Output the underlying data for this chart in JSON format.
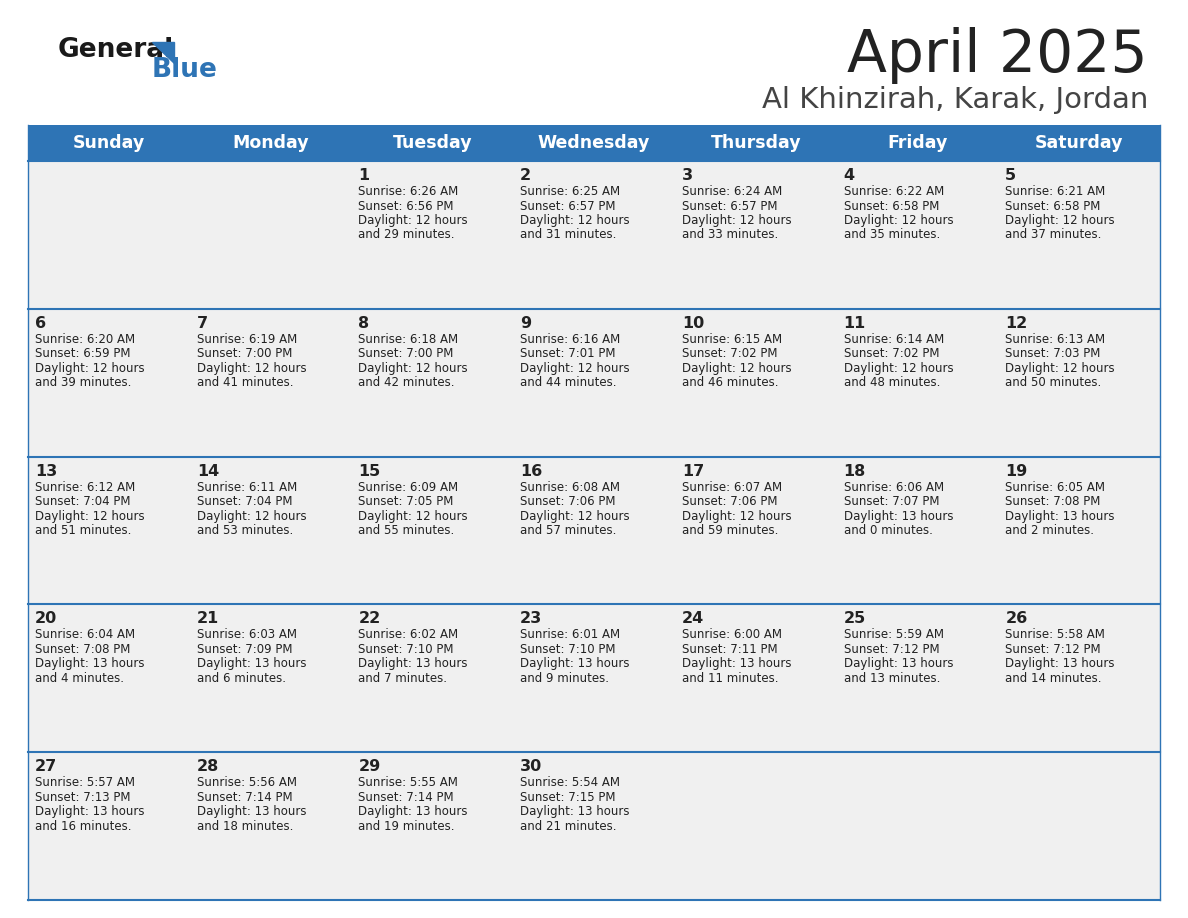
{
  "title": "April 2025",
  "subtitle": "Al Khinzirah, Karak, Jordan",
  "days_of_week": [
    "Sunday",
    "Monday",
    "Tuesday",
    "Wednesday",
    "Thursday",
    "Friday",
    "Saturday"
  ],
  "header_bg": "#2e74b5",
  "header_text": "#ffffff",
  "cell_bg_light": "#f0f0f0",
  "cell_border": "#2e74b5",
  "title_color": "#222222",
  "text_color": "#222222",
  "calendar": [
    [
      {
        "day": "",
        "sunrise": "",
        "sunset": "",
        "daylight": ""
      },
      {
        "day": "",
        "sunrise": "",
        "sunset": "",
        "daylight": ""
      },
      {
        "day": "1",
        "sunrise": "6:26 AM",
        "sunset": "6:56 PM",
        "daylight_hours": "12",
        "daylight_mins": "29"
      },
      {
        "day": "2",
        "sunrise": "6:25 AM",
        "sunset": "6:57 PM",
        "daylight_hours": "12",
        "daylight_mins": "31"
      },
      {
        "day": "3",
        "sunrise": "6:24 AM",
        "sunset": "6:57 PM",
        "daylight_hours": "12",
        "daylight_mins": "33"
      },
      {
        "day": "4",
        "sunrise": "6:22 AM",
        "sunset": "6:58 PM",
        "daylight_hours": "12",
        "daylight_mins": "35"
      },
      {
        "day": "5",
        "sunrise": "6:21 AM",
        "sunset": "6:58 PM",
        "daylight_hours": "12",
        "daylight_mins": "37"
      }
    ],
    [
      {
        "day": "6",
        "sunrise": "6:20 AM",
        "sunset": "6:59 PM",
        "daylight_hours": "12",
        "daylight_mins": "39"
      },
      {
        "day": "7",
        "sunrise": "6:19 AM",
        "sunset": "7:00 PM",
        "daylight_hours": "12",
        "daylight_mins": "41"
      },
      {
        "day": "8",
        "sunrise": "6:18 AM",
        "sunset": "7:00 PM",
        "daylight_hours": "12",
        "daylight_mins": "42"
      },
      {
        "day": "9",
        "sunrise": "6:16 AM",
        "sunset": "7:01 PM",
        "daylight_hours": "12",
        "daylight_mins": "44"
      },
      {
        "day": "10",
        "sunrise": "6:15 AM",
        "sunset": "7:02 PM",
        "daylight_hours": "12",
        "daylight_mins": "46"
      },
      {
        "day": "11",
        "sunrise": "6:14 AM",
        "sunset": "7:02 PM",
        "daylight_hours": "12",
        "daylight_mins": "48"
      },
      {
        "day": "12",
        "sunrise": "6:13 AM",
        "sunset": "7:03 PM",
        "daylight_hours": "12",
        "daylight_mins": "50"
      }
    ],
    [
      {
        "day": "13",
        "sunrise": "6:12 AM",
        "sunset": "7:04 PM",
        "daylight_hours": "12",
        "daylight_mins": "51"
      },
      {
        "day": "14",
        "sunrise": "6:11 AM",
        "sunset": "7:04 PM",
        "daylight_hours": "12",
        "daylight_mins": "53"
      },
      {
        "day": "15",
        "sunrise": "6:09 AM",
        "sunset": "7:05 PM",
        "daylight_hours": "12",
        "daylight_mins": "55"
      },
      {
        "day": "16",
        "sunrise": "6:08 AM",
        "sunset": "7:06 PM",
        "daylight_hours": "12",
        "daylight_mins": "57"
      },
      {
        "day": "17",
        "sunrise": "6:07 AM",
        "sunset": "7:06 PM",
        "daylight_hours": "12",
        "daylight_mins": "59"
      },
      {
        "day": "18",
        "sunrise": "6:06 AM",
        "sunset": "7:07 PM",
        "daylight_hours": "13",
        "daylight_mins": "0"
      },
      {
        "day": "19",
        "sunrise": "6:05 AM",
        "sunset": "7:08 PM",
        "daylight_hours": "13",
        "daylight_mins": "2"
      }
    ],
    [
      {
        "day": "20",
        "sunrise": "6:04 AM",
        "sunset": "7:08 PM",
        "daylight_hours": "13",
        "daylight_mins": "4"
      },
      {
        "day": "21",
        "sunrise": "6:03 AM",
        "sunset": "7:09 PM",
        "daylight_hours": "13",
        "daylight_mins": "6"
      },
      {
        "day": "22",
        "sunrise": "6:02 AM",
        "sunset": "7:10 PM",
        "daylight_hours": "13",
        "daylight_mins": "7"
      },
      {
        "day": "23",
        "sunrise": "6:01 AM",
        "sunset": "7:10 PM",
        "daylight_hours": "13",
        "daylight_mins": "9"
      },
      {
        "day": "24",
        "sunrise": "6:00 AM",
        "sunset": "7:11 PM",
        "daylight_hours": "13",
        "daylight_mins": "11"
      },
      {
        "day": "25",
        "sunrise": "5:59 AM",
        "sunset": "7:12 PM",
        "daylight_hours": "13",
        "daylight_mins": "13"
      },
      {
        "day": "26",
        "sunrise": "5:58 AM",
        "sunset": "7:12 PM",
        "daylight_hours": "13",
        "daylight_mins": "14"
      }
    ],
    [
      {
        "day": "27",
        "sunrise": "5:57 AM",
        "sunset": "7:13 PM",
        "daylight_hours": "13",
        "daylight_mins": "16"
      },
      {
        "day": "28",
        "sunrise": "5:56 AM",
        "sunset": "7:14 PM",
        "daylight_hours": "13",
        "daylight_mins": "18"
      },
      {
        "day": "29",
        "sunrise": "5:55 AM",
        "sunset": "7:14 PM",
        "daylight_hours": "13",
        "daylight_mins": "19"
      },
      {
        "day": "30",
        "sunrise": "5:54 AM",
        "sunset": "7:15 PM",
        "daylight_hours": "13",
        "daylight_mins": "21"
      },
      {
        "day": "",
        "sunrise": "",
        "sunset": "",
        "daylight_hours": "",
        "daylight_mins": ""
      },
      {
        "day": "",
        "sunrise": "",
        "sunset": "",
        "daylight_hours": "",
        "daylight_mins": ""
      },
      {
        "day": "",
        "sunrise": "",
        "sunset": "",
        "daylight_hours": "",
        "daylight_mins": ""
      }
    ]
  ]
}
